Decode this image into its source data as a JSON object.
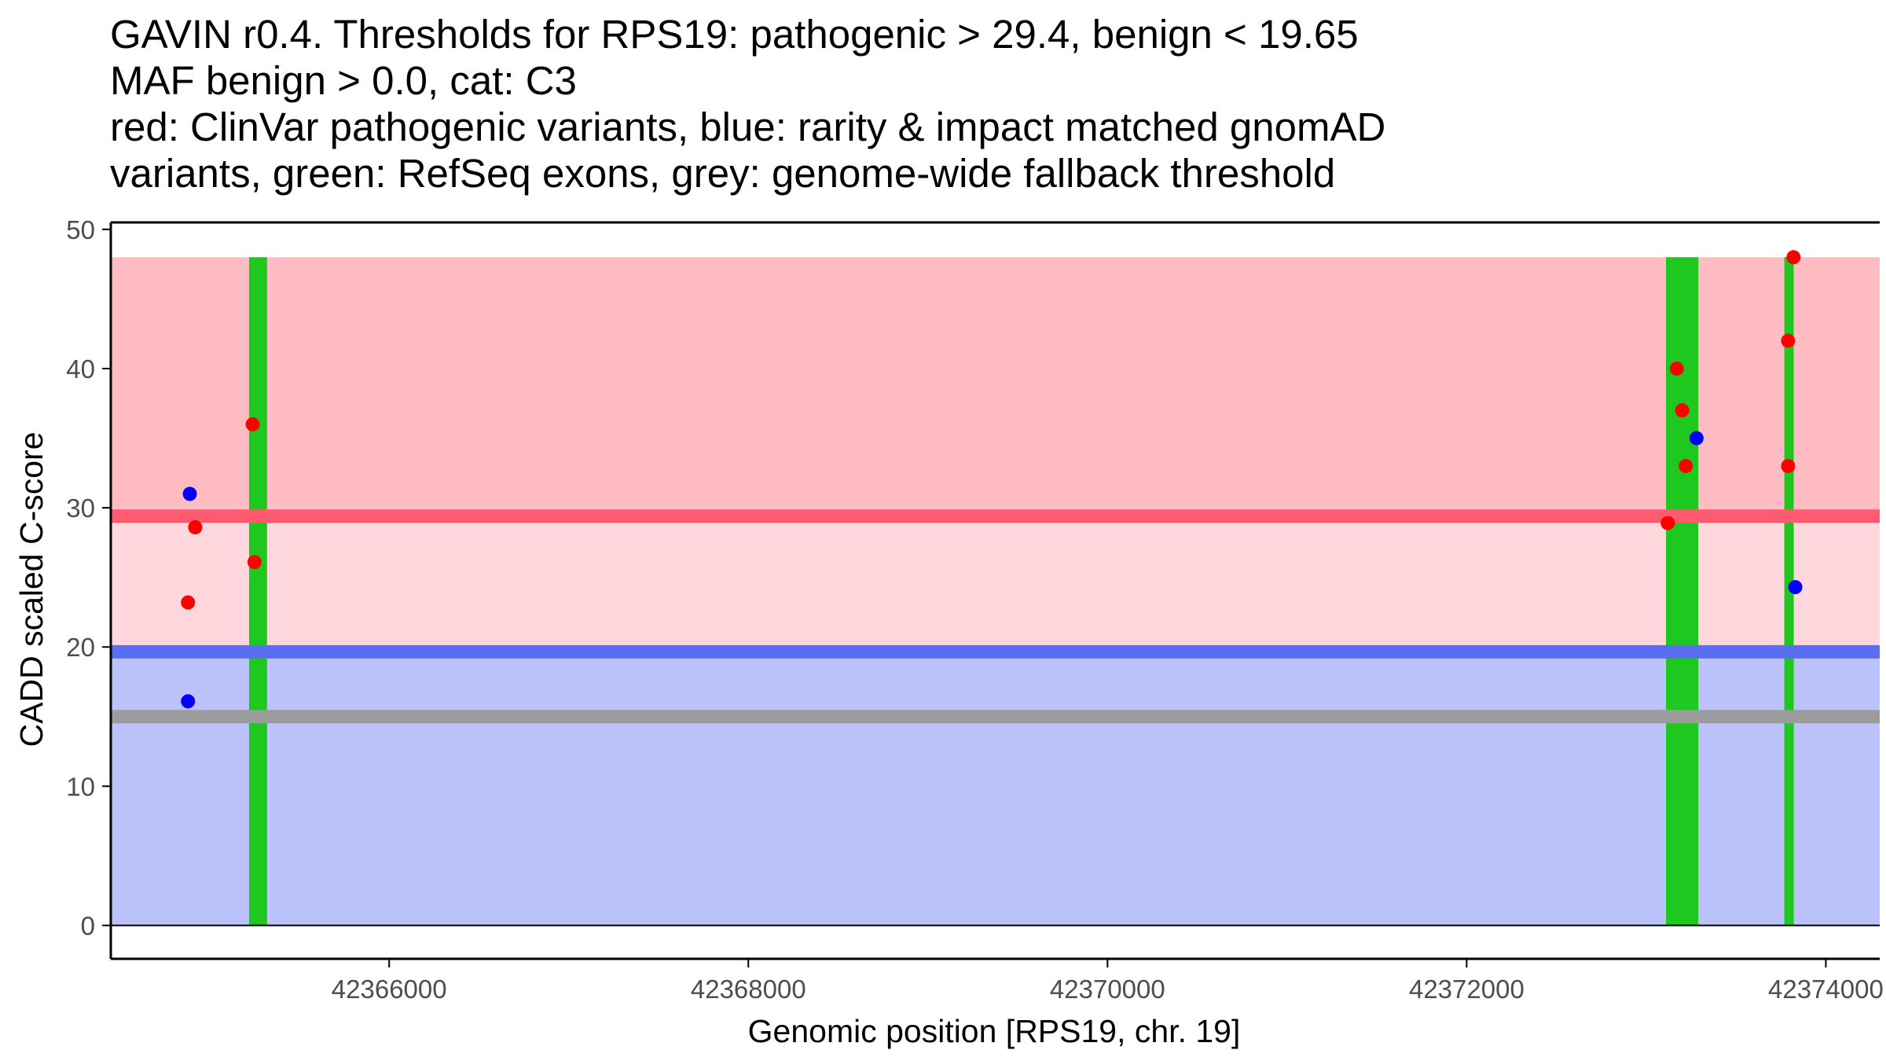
{
  "chart_data": {
    "type": "scatter",
    "title_lines": [
      "GAVIN r0.4. Thresholds for RPS19: pathogenic > 29.4, benign < 19.65",
      "MAF benign > 0.0, cat: C3",
      "red: ClinVar pathogenic variants, blue: rarity & impact matched gnomAD",
      "variants, green: RefSeq exons, grey: genome-wide fallback threshold"
    ],
    "xlabel": "Genomic position [RPS19, chr. 19]",
    "ylabel": "CADD scaled C-score",
    "xlim": [
      42364450,
      42374300
    ],
    "ylim": [
      -2.4,
      50.5
    ],
    "x_ticks": [
      42366000,
      42368000,
      42370000,
      42372000,
      42374000
    ],
    "x_tick_labels": [
      "42366000",
      "42368000",
      "42370000",
      "42372000",
      "42374000"
    ],
    "y_ticks": [
      0,
      10,
      20,
      30,
      40,
      50
    ],
    "y_tick_labels": [
      "0",
      "10",
      "20",
      "30",
      "40",
      "50"
    ],
    "grid": false,
    "bands": [
      {
        "name": "pathogenic-region",
        "y0": 29.4,
        "y1": 48,
        "color": "#ffbcc3"
      },
      {
        "name": "intermediate-region",
        "y0": 19.65,
        "y1": 29.4,
        "color": "#ffd7dc"
      },
      {
        "name": "benign-region",
        "y0": 0,
        "y1": 19.65,
        "color": "#bcc2fa"
      }
    ],
    "thresholds": [
      {
        "name": "pathogenic-threshold",
        "y": 29.4,
        "color": "#ff5a6e"
      },
      {
        "name": "benign-threshold",
        "y": 19.65,
        "color": "#5a6ef2"
      },
      {
        "name": "fallback-threshold",
        "y": 15.0,
        "color": "#9c9c9c"
      }
    ],
    "exons": [
      {
        "start": 42365220,
        "end": 42365320
      },
      {
        "start": 42373110,
        "end": 42373290
      },
      {
        "start": 42373770,
        "end": 42373820
      }
    ],
    "exon_color": "#1ec81e",
    "series": [
      {
        "name": "ClinVar pathogenic variants",
        "color": "#ff0000",
        "points": [
          {
            "x": 42364880,
            "y": 23.2
          },
          {
            "x": 42364920,
            "y": 28.6
          },
          {
            "x": 42365240,
            "y": 36.0
          },
          {
            "x": 42365250,
            "y": 26.1
          },
          {
            "x": 42373120,
            "y": 28.9
          },
          {
            "x": 42373170,
            "y": 40.0
          },
          {
            "x": 42373200,
            "y": 37.0
          },
          {
            "x": 42373220,
            "y": 33.0
          },
          {
            "x": 42373790,
            "y": 42.0
          },
          {
            "x": 42373790,
            "y": 33.0
          },
          {
            "x": 42373820,
            "y": 48.0
          }
        ]
      },
      {
        "name": "rarity & impact matched gnomAD variants",
        "color": "#0000ff",
        "points": [
          {
            "x": 42364890,
            "y": 31.0
          },
          {
            "x": 42364880,
            "y": 16.1
          },
          {
            "x": 42373280,
            "y": 35.0
          },
          {
            "x": 42373830,
            "y": 24.3
          }
        ]
      }
    ]
  }
}
